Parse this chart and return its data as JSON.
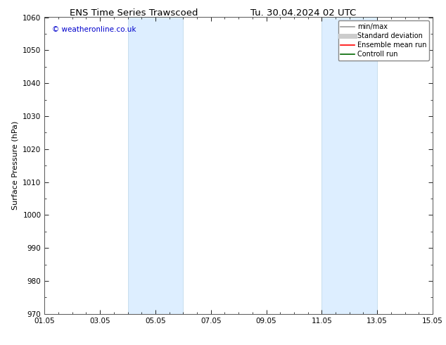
{
  "title_left": "ENS Time Series Trawscoed",
  "title_right": "Tu. 30.04.2024 02 UTC",
  "ylabel": "Surface Pressure (hPa)",
  "ylim": [
    970,
    1060
  ],
  "yticks": [
    970,
    980,
    990,
    1000,
    1010,
    1020,
    1030,
    1040,
    1050,
    1060
  ],
  "xlim": [
    0,
    14
  ],
  "xtick_labels": [
    "01.05",
    "03.05",
    "05.05",
    "07.05",
    "09.05",
    "11.05",
    "13.05",
    "15.05"
  ],
  "xtick_positions": [
    0,
    2,
    4,
    6,
    8,
    10,
    12,
    14
  ],
  "shaded_bands": [
    {
      "x_start": 3.0,
      "x_end": 5.0
    },
    {
      "x_start": 10.0,
      "x_end": 12.0
    }
  ],
  "shaded_color": "#ddeeff",
  "shaded_edge_color": "#b8d4e8",
  "watermark_text": "© weatheronline.co.uk",
  "watermark_color": "#0000cc",
  "legend_entries": [
    {
      "label": "min/max",
      "color": "#999999",
      "lw": 1.2
    },
    {
      "label": "Standard deviation",
      "color": "#cccccc",
      "lw": 5
    },
    {
      "label": "Ensemble mean run",
      "color": "#ff0000",
      "lw": 1.2
    },
    {
      "label": "Controll run",
      "color": "#006600",
      "lw": 1.2
    }
  ],
  "bg_color": "#ffffff",
  "title_fontsize": 9.5,
  "ylabel_fontsize": 8,
  "tick_fontsize": 7.5,
  "watermark_fontsize": 7.5,
  "legend_fontsize": 7
}
